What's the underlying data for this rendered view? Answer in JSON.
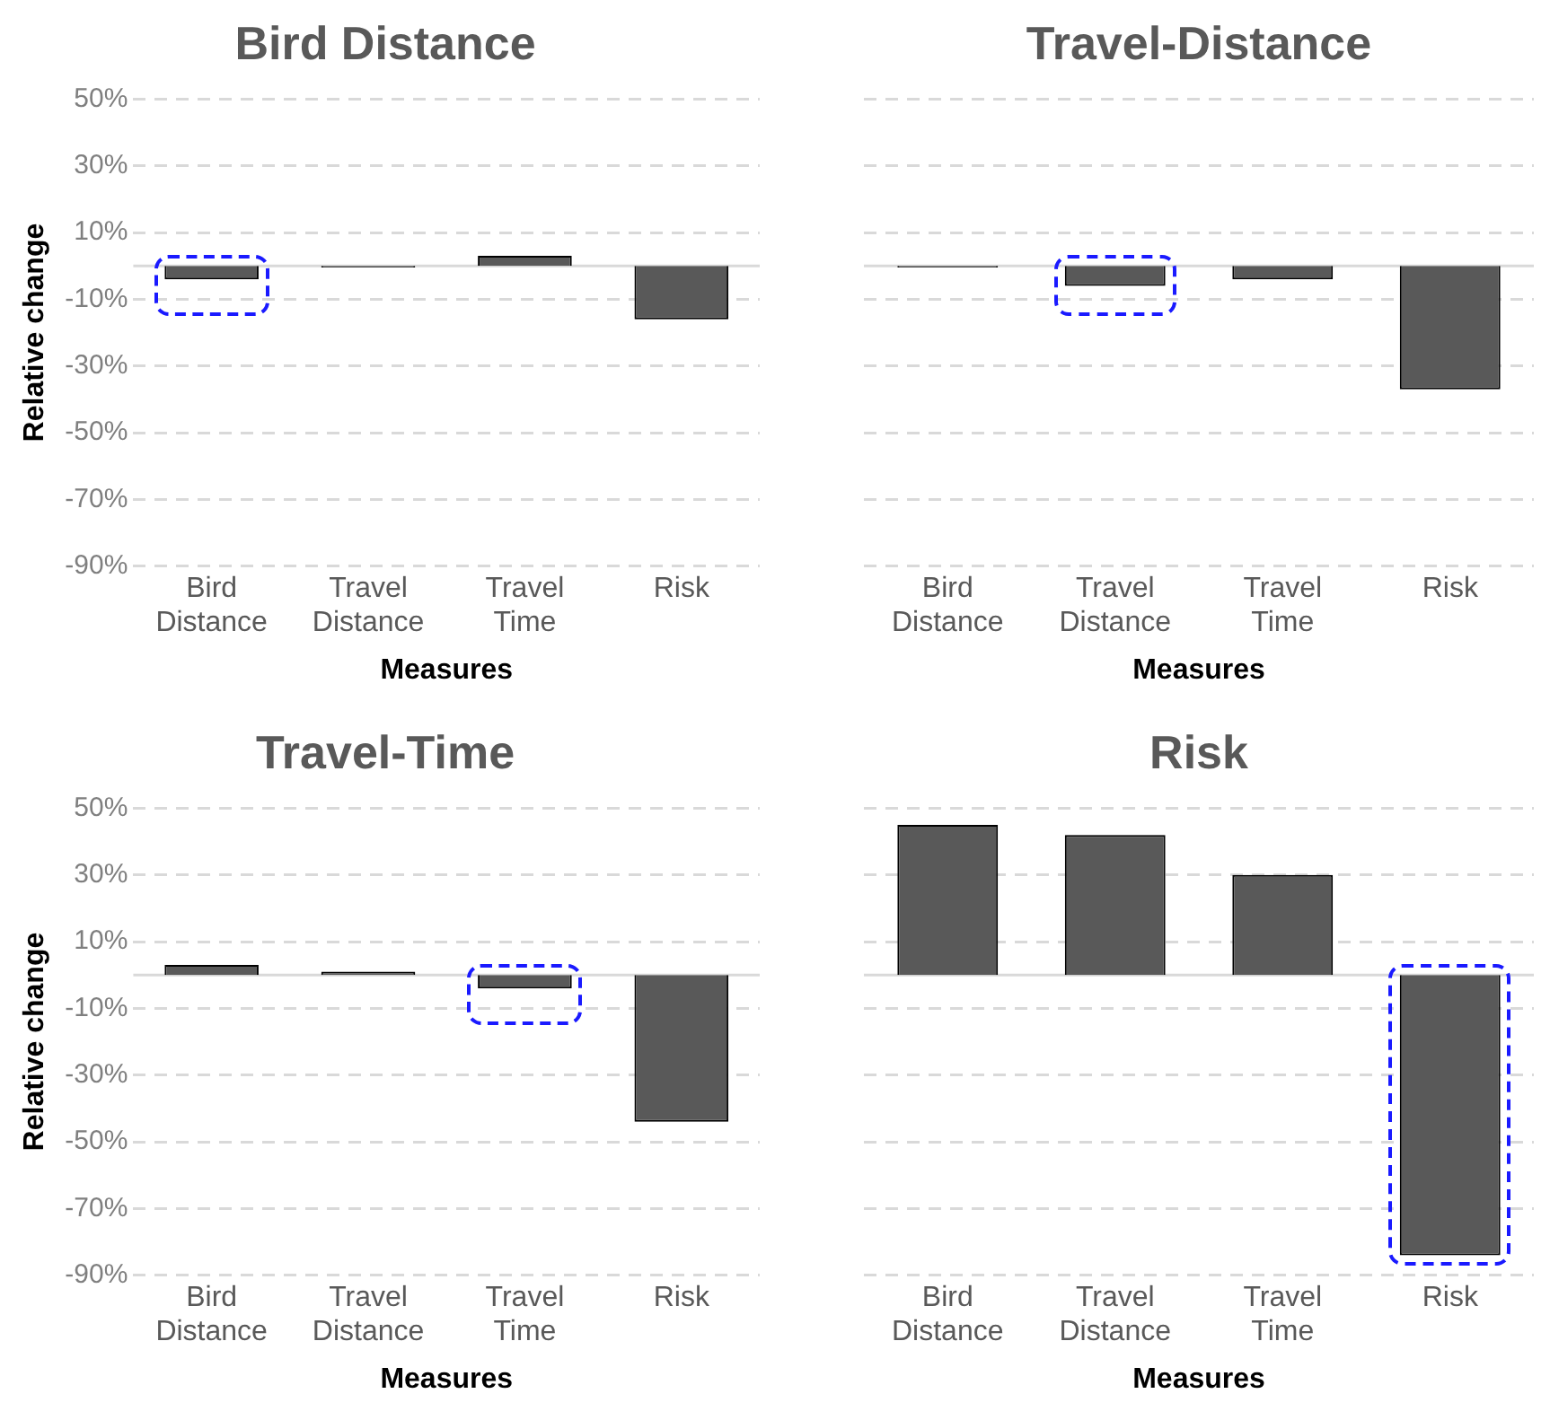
{
  "chart_data": [
    {
      "type": "bar",
      "title": "Bird Distance",
      "xlabel": "Measures",
      "ylabel": "Relative change",
      "categories": [
        "Bird Distance",
        "Travel Distance",
        "Travel Time",
        "Risk"
      ],
      "series": [
        {
          "color": "#595959",
          "values": [
            -4,
            -0.5,
            3,
            -16
          ]
        }
      ],
      "ylim": [
        -90,
        50
      ],
      "yticks": [
        {
          "value": 50,
          "label": "50%"
        },
        {
          "value": 30,
          "label": "30%"
        },
        {
          "value": 10,
          "label": "10%"
        },
        {
          "value": -10,
          "label": "-10%"
        },
        {
          "value": -30,
          "label": "-30%"
        },
        {
          "value": -50,
          "label": "-50%"
        },
        {
          "value": -70,
          "label": "-70%"
        },
        {
          "value": -90,
          "label": "-90%"
        }
      ],
      "grid": "y",
      "legend": false,
      "ref_lines": [
        {
          "axis": "y",
          "value": 0,
          "color": "#d9d9d9"
        }
      ]
    },
    {
      "type": "bar",
      "title": "Travel-Distance",
      "xlabel": "Measures",
      "categories": [
        "Bird Distance",
        "Travel Distance",
        "Travel Time",
        "Risk"
      ],
      "series": [
        {
          "color": "#595959",
          "values": [
            -0.5,
            -6,
            -4,
            -37
          ]
        }
      ],
      "ylim": [
        -90,
        50
      ],
      "yticks": [
        50,
        30,
        10,
        -10,
        -30,
        -50,
        -70,
        -90
      ],
      "tick_labels": "x",
      "grid": "y",
      "legend": false,
      "ref_lines": [
        {
          "axis": "y",
          "value": 0,
          "color": "#d9d9d9"
        }
      ]
    },
    {
      "type": "bar",
      "title": "Travel-Time",
      "xlabel": "Measures",
      "ylabel": "Relative change",
      "categories": [
        "Bird Distance",
        "Travel Distance",
        "Travel Time",
        "Risk"
      ],
      "series": [
        {
          "color": "#595959",
          "values": [
            3,
            1,
            -4,
            -44
          ]
        }
      ],
      "ylim": [
        -90,
        50
      ],
      "yticks": [
        {
          "value": 50,
          "label": "50%"
        },
        {
          "value": 30,
          "label": "30%"
        },
        {
          "value": 10,
          "label": "10%"
        },
        {
          "value": -10,
          "label": "-10%"
        },
        {
          "value": -30,
          "label": "-30%"
        },
        {
          "value": -50,
          "label": "-50%"
        },
        {
          "value": -70,
          "label": "-70%"
        },
        {
          "value": -90,
          "label": "-90%"
        }
      ],
      "grid": "y",
      "legend": false,
      "ref_lines": [
        {
          "axis": "y",
          "value": 0,
          "color": "#d9d9d9"
        }
      ]
    },
    {
      "type": "bar",
      "title": "Risk",
      "xlabel": "Measures",
      "categories": [
        "Bird Distance",
        "Travel Distance",
        "Travel Time",
        "Risk"
      ],
      "series": [
        {
          "color": "#595959",
          "values": [
            45,
            42,
            30,
            -84
          ]
        }
      ],
      "ylim": [
        -90,
        50
      ],
      "yticks": [
        50,
        30,
        10,
        -10,
        -30,
        -50,
        -70,
        -90
      ],
      "tick_labels": "x",
      "grid": "y",
      "legend": false,
      "ref_lines": [
        {
          "axis": "y",
          "value": 0,
          "color": "#d9d9d9"
        }
      ]
    }
  ]
}
